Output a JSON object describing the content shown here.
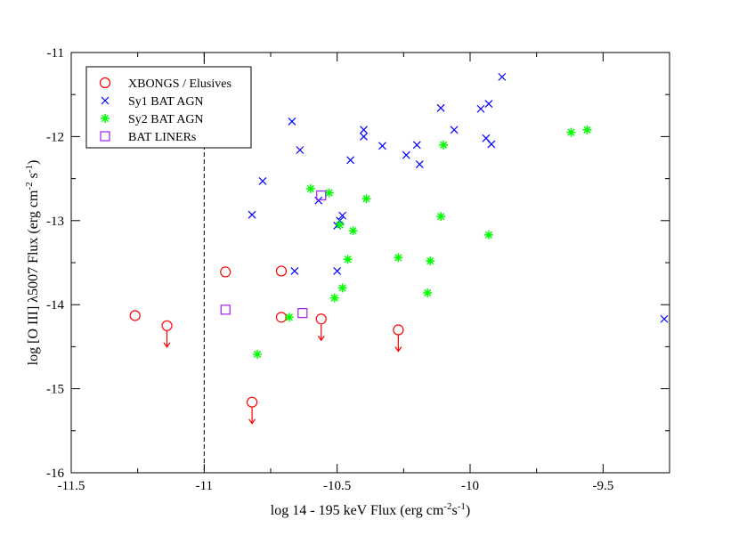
{
  "chart_data": {
    "type": "scatter",
    "xlabel": {
      "prefix": "log 14 - 195 keV Flux (erg cm",
      "exp1": "-2",
      "mid": "s",
      "exp2": "-1",
      "suffix": ")"
    },
    "ylabel": {
      "prefix": "log [O III] λ5007 Flux (erg cm",
      "exp1": "-2",
      "mid": " s",
      "exp2": "-1",
      "suffix": ")"
    },
    "xlim": [
      -11.5,
      -9.25
    ],
    "ylim": [
      -16,
      -11
    ],
    "xticks": [
      {
        "value": -11.5,
        "label": "-11.5"
      },
      {
        "value": -11,
        "label": "-11"
      },
      {
        "value": -10.5,
        "label": "-10.5"
      },
      {
        "value": -10,
        "label": "-10"
      },
      {
        "value": -9.5,
        "label": "-9.5"
      }
    ],
    "yticks": [
      {
        "value": -16,
        "label": "-16"
      },
      {
        "value": -15,
        "label": "-15"
      },
      {
        "value": -14,
        "label": "-14"
      },
      {
        "value": -13,
        "label": "-13"
      },
      {
        "value": -12,
        "label": "-12"
      },
      {
        "value": -11,
        "label": "-11"
      }
    ],
    "vline": -11.0,
    "legend": {
      "placement": "top-left"
    },
    "series": [
      {
        "name": "XBONGS / Elusives",
        "marker": "circle",
        "color": "#ff0000",
        "points": [
          {
            "x": -11.26,
            "y": -14.13,
            "upper_limit": false
          },
          {
            "x": -11.14,
            "y": -14.25,
            "upper_limit": true
          },
          {
            "x": -10.92,
            "y": -13.61,
            "upper_limit": false
          },
          {
            "x": -10.82,
            "y": -15.16,
            "upper_limit": true
          },
          {
            "x": -10.71,
            "y": -13.6,
            "upper_limit": false
          },
          {
            "x": -10.71,
            "y": -14.15,
            "upper_limit": false
          },
          {
            "x": -10.56,
            "y": -14.17,
            "upper_limit": true
          },
          {
            "x": -10.27,
            "y": -14.3,
            "upper_limit": true
          }
        ]
      },
      {
        "name": "Sy1 BAT AGN",
        "marker": "x",
        "color": "#0000ff",
        "points": [
          {
            "x": -10.82,
            "y": -12.93
          },
          {
            "x": -10.78,
            "y": -12.53
          },
          {
            "x": -10.67,
            "y": -11.82
          },
          {
            "x": -10.66,
            "y": -13.6
          },
          {
            "x": -10.64,
            "y": -12.16
          },
          {
            "x": -10.57,
            "y": -12.76
          },
          {
            "x": -10.5,
            "y": -13.06
          },
          {
            "x": -10.5,
            "y": -13.6
          },
          {
            "x": -10.49,
            "y": -13.0
          },
          {
            "x": -10.48,
            "y": -12.94
          },
          {
            "x": -10.45,
            "y": -12.28
          },
          {
            "x": -10.4,
            "y": -11.92
          },
          {
            "x": -10.4,
            "y": -12.0
          },
          {
            "x": -10.33,
            "y": -12.11
          },
          {
            "x": -10.24,
            "y": -12.22
          },
          {
            "x": -10.2,
            "y": -12.1
          },
          {
            "x": -10.19,
            "y": -12.33
          },
          {
            "x": -10.11,
            "y": -11.66
          },
          {
            "x": -10.06,
            "y": -11.92
          },
          {
            "x": -9.96,
            "y": -11.67
          },
          {
            "x": -9.94,
            "y": -12.02
          },
          {
            "x": -9.93,
            "y": -11.61
          },
          {
            "x": -9.92,
            "y": -12.09
          },
          {
            "x": -9.88,
            "y": -11.29
          },
          {
            "x": -9.27,
            "y": -14.17
          }
        ]
      },
      {
        "name": "Sy2 BAT AGN",
        "marker": "asterisk",
        "color": "#00ff00",
        "points": [
          {
            "x": -10.8,
            "y": -14.59
          },
          {
            "x": -10.68,
            "y": -14.15
          },
          {
            "x": -10.6,
            "y": -12.62
          },
          {
            "x": -10.53,
            "y": -12.67
          },
          {
            "x": -10.51,
            "y": -13.92
          },
          {
            "x": -10.49,
            "y": -13.05
          },
          {
            "x": -10.48,
            "y": -13.8
          },
          {
            "x": -10.46,
            "y": -13.46
          },
          {
            "x": -10.44,
            "y": -13.12
          },
          {
            "x": -10.39,
            "y": -12.74
          },
          {
            "x": -10.27,
            "y": -13.44
          },
          {
            "x": -10.16,
            "y": -13.86
          },
          {
            "x": -10.15,
            "y": -13.48
          },
          {
            "x": -10.11,
            "y": -12.95
          },
          {
            "x": -10.1,
            "y": -12.1
          },
          {
            "x": -9.93,
            "y": -13.17
          },
          {
            "x": -9.62,
            "y": -11.95
          },
          {
            "x": -9.56,
            "y": -11.92
          }
        ]
      },
      {
        "name": "BAT LINERs",
        "marker": "square",
        "color": "#a020f0",
        "points": [
          {
            "x": -10.92,
            "y": -14.06
          },
          {
            "x": -10.63,
            "y": -14.1
          },
          {
            "x": -10.56,
            "y": -12.7
          }
        ]
      }
    ]
  }
}
